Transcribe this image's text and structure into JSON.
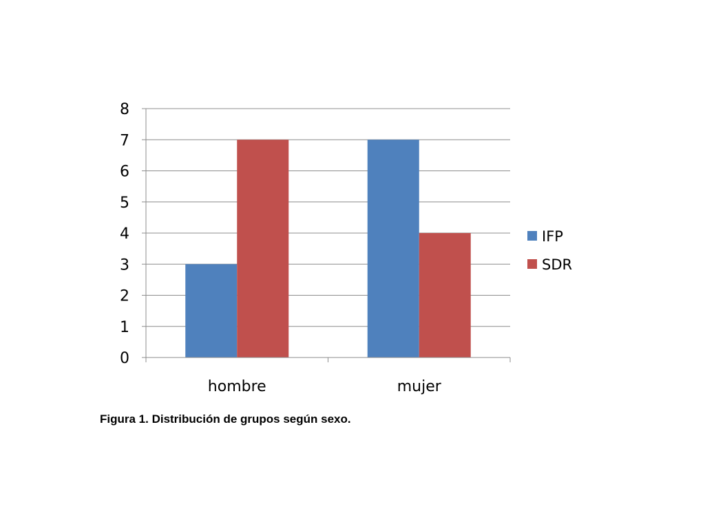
{
  "chart_data": {
    "type": "bar",
    "categories": [
      "hombre",
      "mujer"
    ],
    "series": [
      {
        "name": "IFP",
        "values": [
          3,
          7
        ],
        "color": "#4F81BD"
      },
      {
        "name": "SDR",
        "values": [
          7,
          4
        ],
        "color": "#C0504D"
      }
    ],
    "ylim": [
      0,
      8
    ],
    "yticks": [
      0,
      1,
      2,
      3,
      4,
      5,
      6,
      7,
      8
    ],
    "grid": true,
    "legend": "right"
  },
  "caption": "Figura 1. Distribución de grupos según sexo."
}
